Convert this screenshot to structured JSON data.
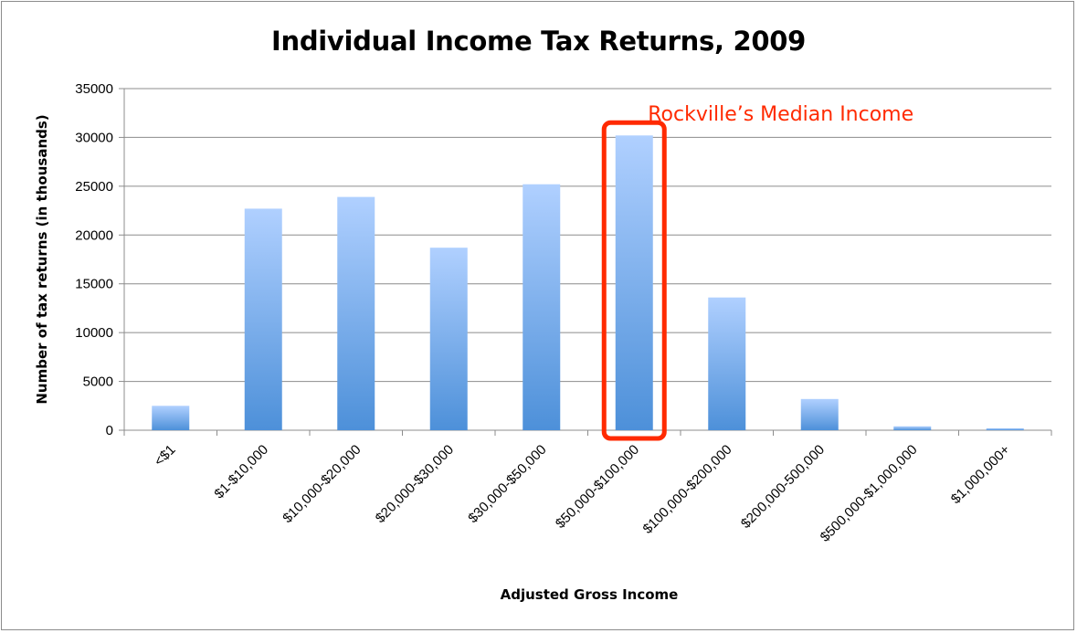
{
  "chart_data": {
    "type": "bar",
    "title": "Individual Income Tax Returns, 2009",
    "xlabel": "Adjusted Gross Income",
    "ylabel": "Number of tax returns (in thousands)",
    "categories": [
      "<$1",
      "$1-$10,000",
      "$10,000-$20,000",
      "$20,000-$30,000",
      "$30,000-$50,000",
      "$50,000-$100,000",
      "$100,000-$200,000",
      "$200,000-500,000",
      "$500,000-$1,000,000",
      "$1,000,000+"
    ],
    "values": [
      2500,
      22700,
      23900,
      18700,
      25200,
      30200,
      13600,
      3200,
      400,
      200
    ],
    "ylim": [
      0,
      35000
    ],
    "yticks": [
      0,
      5000,
      10000,
      15000,
      20000,
      25000,
      30000,
      35000
    ],
    "grid": true,
    "legend": "none",
    "bar_gradient": [
      "#b0d0ff",
      "#4d90d9"
    ],
    "annotation": {
      "text": "Rockville’s Median Income",
      "category": "$50,000-$100,000",
      "color": "#ff2a00"
    }
  }
}
